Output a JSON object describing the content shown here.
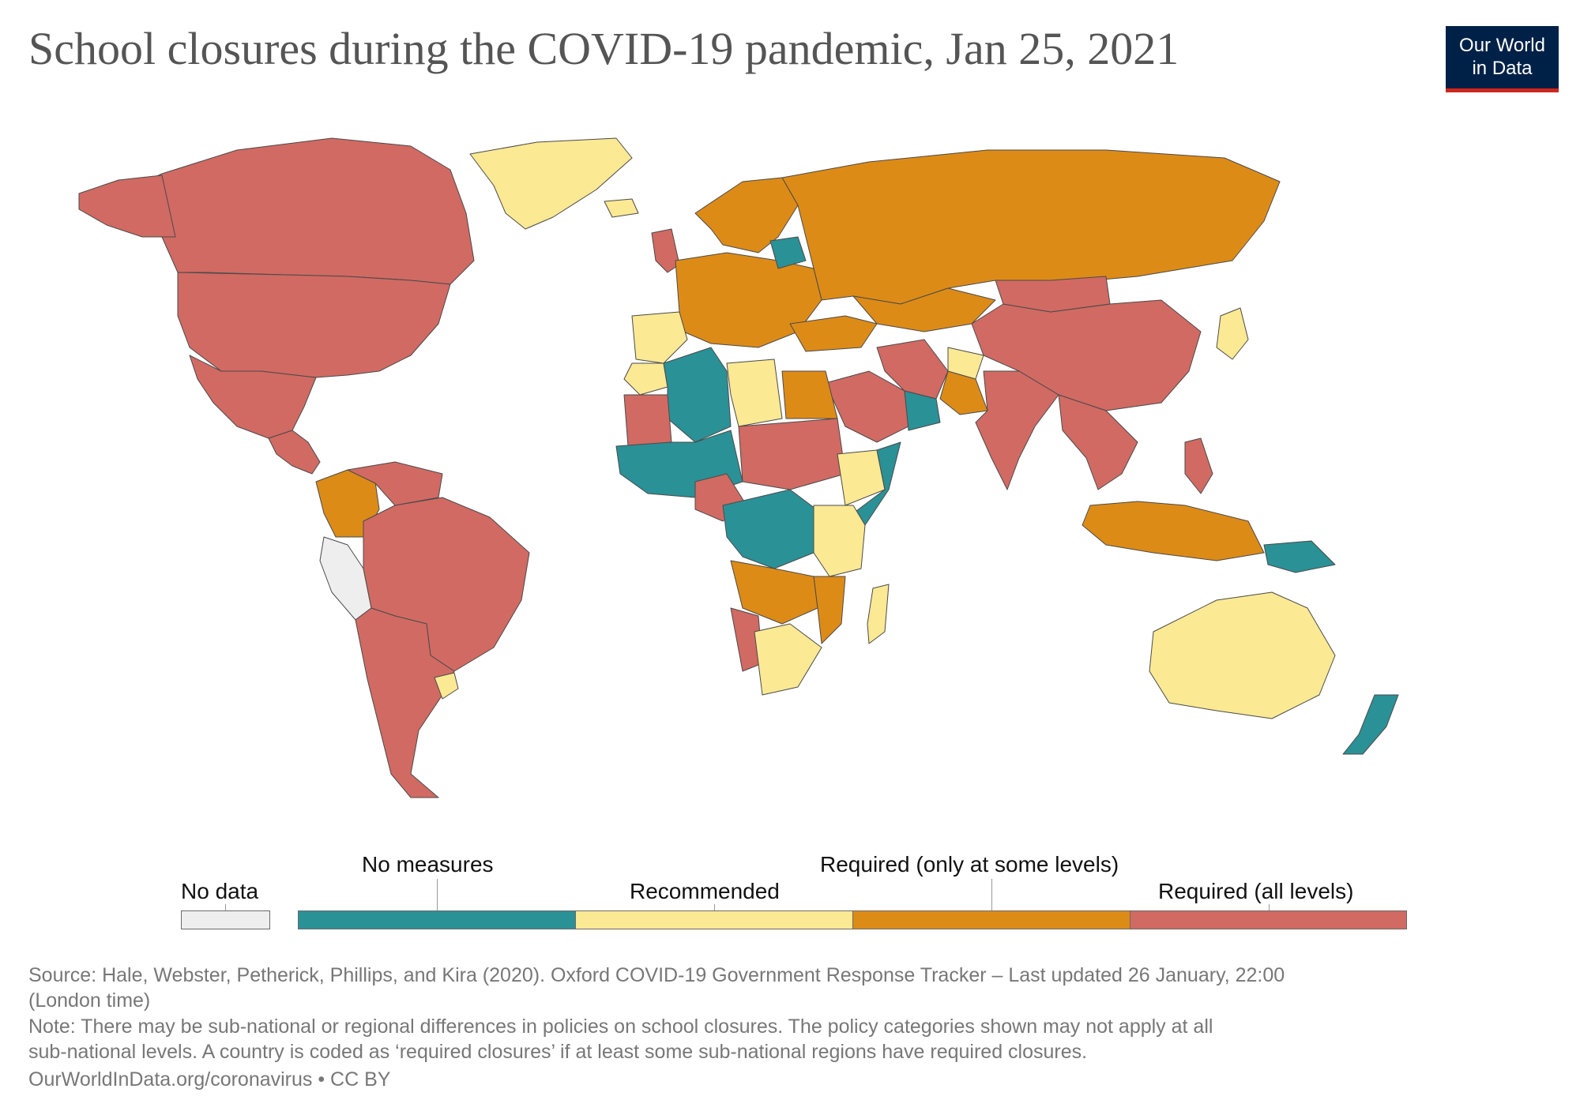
{
  "title": "School closures during the COVID-19 pandemic, Jan 25, 2021",
  "logo": {
    "line1": "Our World",
    "line2": "in Data"
  },
  "colors": {
    "no_data": "#eeeeee",
    "no_measures": "#2a9196",
    "recommended": "#fbe993",
    "required_some": "#dd8b17",
    "required_all": "#d16a63",
    "border": "#4a4a4a"
  },
  "legend": {
    "no_data": "No data",
    "categories": [
      {
        "key": "no_measures",
        "label": "No measures"
      },
      {
        "key": "recommended",
        "label": "Recommended"
      },
      {
        "key": "required_some",
        "label": "Required (only at some levels)"
      },
      {
        "key": "required_all",
        "label": "Required (all levels)"
      }
    ]
  },
  "map_regions": [
    {
      "name": "canada",
      "category": "required_all"
    },
    {
      "name": "united-states",
      "category": "required_all"
    },
    {
      "name": "alaska",
      "category": "required_all"
    },
    {
      "name": "mexico",
      "category": "required_all"
    },
    {
      "name": "greenland",
      "category": "recommended"
    },
    {
      "name": "iceland",
      "category": "recommended"
    },
    {
      "name": "central-america",
      "category": "required_all"
    },
    {
      "name": "colombia",
      "category": "required_some"
    },
    {
      "name": "venezuela",
      "category": "required_all"
    },
    {
      "name": "peru",
      "category": "no_data"
    },
    {
      "name": "brazil",
      "category": "required_all"
    },
    {
      "name": "argentina-chile",
      "category": "required_all"
    },
    {
      "name": "uruguay",
      "category": "recommended"
    },
    {
      "name": "russia",
      "category": "required_some"
    },
    {
      "name": "scandinavia",
      "category": "required_some"
    },
    {
      "name": "united-kingdom",
      "category": "required_all"
    },
    {
      "name": "western-europe",
      "category": "required_some"
    },
    {
      "name": "iberia",
      "category": "recommended"
    },
    {
      "name": "belarus",
      "category": "no_measures"
    },
    {
      "name": "kazakhstan",
      "category": "required_some"
    },
    {
      "name": "china",
      "category": "required_all"
    },
    {
      "name": "mongolia",
      "category": "required_all"
    },
    {
      "name": "japan",
      "category": "recommended"
    },
    {
      "name": "india",
      "category": "required_all"
    },
    {
      "name": "iran",
      "category": "required_all"
    },
    {
      "name": "saudi-arabia",
      "category": "required_all"
    },
    {
      "name": "oman",
      "category": "no_measures"
    },
    {
      "name": "pakistan",
      "category": "required_some"
    },
    {
      "name": "afghanistan",
      "category": "recommended"
    },
    {
      "name": "turkey",
      "category": "required_some"
    },
    {
      "name": "southeast-asia",
      "category": "required_all"
    },
    {
      "name": "indonesia",
      "category": "required_some"
    },
    {
      "name": "papua-new-guinea",
      "category": "no_measures"
    },
    {
      "name": "philippines",
      "category": "required_all"
    },
    {
      "name": "morocco",
      "category": "recommended"
    },
    {
      "name": "algeria",
      "category": "no_measures"
    },
    {
      "name": "libya",
      "category": "recommended"
    },
    {
      "name": "egypt",
      "category": "required_some"
    },
    {
      "name": "mauritania",
      "category": "required_all"
    },
    {
      "name": "sahel",
      "category": "no_measures"
    },
    {
      "name": "chad-sudan",
      "category": "required_all"
    },
    {
      "name": "ethiopia",
      "category": "recommended"
    },
    {
      "name": "somalia",
      "category": "no_measures"
    },
    {
      "name": "nigeria",
      "category": "required_all"
    },
    {
      "name": "central-africa",
      "category": "no_measures"
    },
    {
      "name": "east-africa",
      "category": "recommended"
    },
    {
      "name": "angola-zambia",
      "category": "required_some"
    },
    {
      "name": "namibia",
      "category": "required_all"
    },
    {
      "name": "south-africa",
      "category": "recommended"
    },
    {
      "name": "mozambique",
      "category": "required_some"
    },
    {
      "name": "madagascar",
      "category": "recommended"
    },
    {
      "name": "australia",
      "category": "recommended"
    },
    {
      "name": "new-zealand",
      "category": "no_measures"
    }
  ],
  "footer": {
    "source_line1": "Source: Hale, Webster, Petherick, Phillips, and Kira (2020). Oxford COVID-19 Government Response Tracker – Last updated 26 January, 22:00",
    "source_line2": "(London time)",
    "note_line1": "Note: There may be sub-national or regional differences in policies on school closures. The policy categories shown may not apply at all",
    "note_line2": "sub-national levels. A country is coded as ‘required closures’ if at least some sub-national regions have required closures.",
    "credit": "OurWorldInData.org/coronavirus • CC BY"
  }
}
